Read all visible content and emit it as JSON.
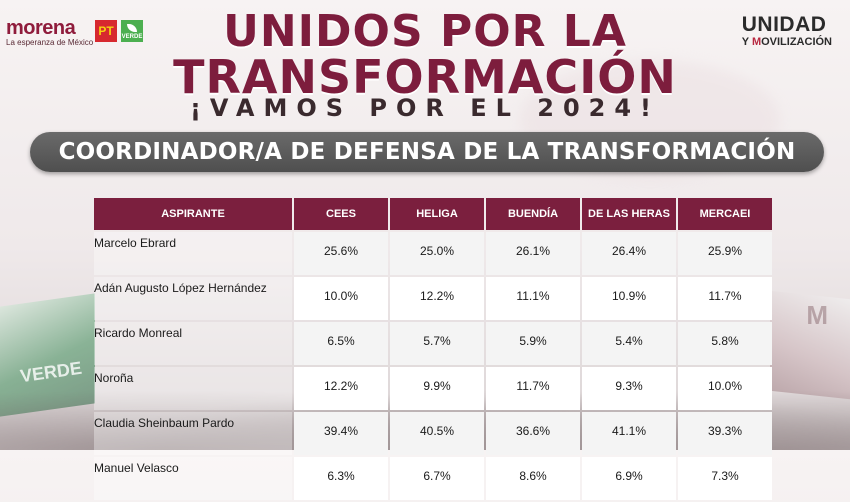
{
  "logos": {
    "morena_word": "morena",
    "morena_tagline": "La esperanza de México",
    "pt_label": "PT",
    "verde_label": "VERDE",
    "unidad_line1": "UNIDAD",
    "unidad_line2_prefix": "Y ",
    "unidad_line2_m": "M",
    "unidad_line2_rest": "OVILIZACIÓN"
  },
  "headline": {
    "line1": "UNIDOS POR LA",
    "line2": "TRANSFORMACIÓN",
    "line3": "¡VAMOS POR EL 2024!"
  },
  "banner": "COORDINADOR/A DE DEFENSA DE LA TRANSFORMACIÓN",
  "background": {
    "flag_left_text": "VERDE",
    "flag_right_text": "M"
  },
  "colors": {
    "maroon": "#7b1f3e",
    "banner_gray": "#5a5a5a",
    "pt_red": "#d7282f",
    "verde_green": "#4caf50"
  },
  "table": {
    "headers": [
      "ASPIRANTE",
      "CEES",
      "HELIGA",
      "BUENDÍA",
      "DE LAS HERAS",
      "MERCAEI"
    ],
    "rows": [
      {
        "name": "Marcelo Ebrard",
        "values": [
          "25.6%",
          "25.0%",
          "26.1%",
          "26.4%",
          "25.9%"
        ]
      },
      {
        "name": "Adán Augusto López Hernández",
        "values": [
          "10.0%",
          "12.2%",
          "11.1%",
          "10.9%",
          "11.7%"
        ]
      },
      {
        "name": "Ricardo Monreal",
        "values": [
          "6.5%",
          "5.7%",
          "5.9%",
          "5.4%",
          "5.8%"
        ]
      },
      {
        "name": "Noroña",
        "values": [
          "12.2%",
          "9.9%",
          "11.7%",
          "9.3%",
          "10.0%"
        ]
      },
      {
        "name": "Claudia Sheinbaum Pardo",
        "values": [
          "39.4%",
          "40.5%",
          "36.6%",
          "41.1%",
          "39.3%"
        ]
      },
      {
        "name": "Manuel Velasco",
        "values": [
          "6.3%",
          "6.7%",
          "8.6%",
          "6.9%",
          "7.3%"
        ]
      }
    ]
  }
}
